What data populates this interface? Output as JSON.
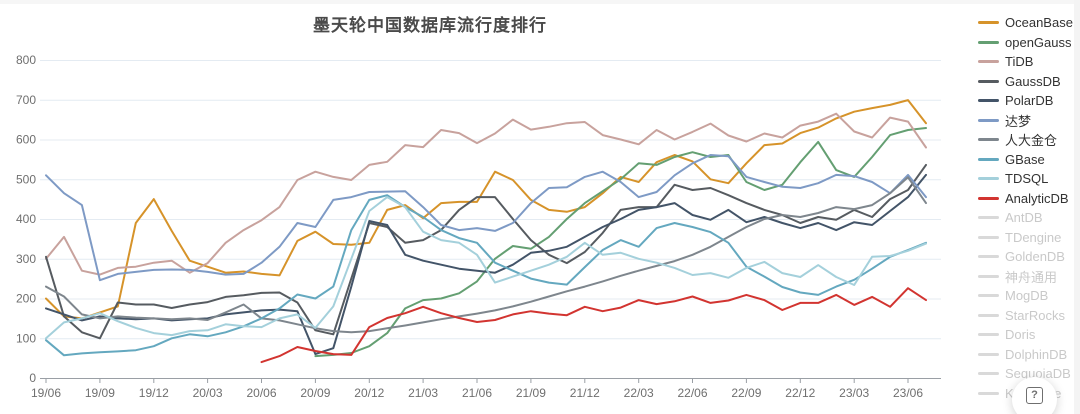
{
  "help_button": {
    "icon": "?"
  },
  "chart_data": {
    "type": "line",
    "title": "墨天轮中国数据库流行度排行",
    "legend_position": "right",
    "grid": true,
    "ylim": [
      0,
      800
    ],
    "y_ticks": [
      0,
      100,
      200,
      300,
      400,
      500,
      600,
      700,
      800
    ],
    "axis_text_color": "#6f6f6f",
    "axis_line_color": "#9a9fa5",
    "grid_color": "#e4ebf2",
    "disabled_color": "#d9d9d9",
    "x": [
      "19/06",
      "19/07",
      "19/08",
      "19/09",
      "19/10",
      "19/11",
      "19/12",
      "20/01",
      "20/02",
      "20/03",
      "20/04",
      "20/05",
      "20/06",
      "20/07",
      "20/08",
      "20/09",
      "20/10",
      "20/11",
      "20/12",
      "21/01",
      "21/02",
      "21/03",
      "21/04",
      "21/05",
      "21/06",
      "21/07",
      "21/08",
      "21/09",
      "21/10",
      "21/11",
      "21/12",
      "22/01",
      "22/02",
      "22/03",
      "22/04",
      "22/05",
      "22/06",
      "22/07",
      "22/08",
      "22/09",
      "22/10",
      "22/11",
      "22/12",
      "23/01",
      "23/02",
      "23/03",
      "23/04",
      "23/05",
      "23/06",
      "23/07"
    ],
    "x_tick_labels": [
      "19/06",
      "19/09",
      "19/12",
      "20/03",
      "20/06",
      "20/09",
      "20/12",
      "21/03",
      "21/06",
      "21/09",
      "21/12",
      "22/03",
      "22/06",
      "22/09",
      "22/12",
      "23/03",
      "23/06"
    ],
    "series": [
      {
        "name": "OceanBase",
        "color": "#d6932a",
        "active": true,
        "values": [
          200,
          155,
          150,
          165,
          180,
          390,
          450,
          370,
          295,
          280,
          265,
          268,
          262,
          258,
          345,
          368,
          337,
          335,
          340,
          423,
          435,
          402,
          440,
          443,
          443,
          519,
          498,
          448,
          423,
          418,
          430,
          465,
          506,
          493,
          543,
          561,
          545,
          500,
          490,
          540,
          586,
          590,
          616,
          630,
          653,
          670,
          679,
          687,
          699,
          641
        ]
      },
      {
        "name": "openGauss",
        "color": "#649f72",
        "active": true,
        "values": [
          null,
          null,
          null,
          null,
          null,
          null,
          null,
          null,
          null,
          null,
          null,
          null,
          null,
          null,
          null,
          55,
          58,
          63,
          80,
          113,
          175,
          196,
          200,
          213,
          243,
          300,
          332,
          325,
          355,
          400,
          440,
          470,
          500,
          540,
          536,
          556,
          568,
          556,
          561,
          493,
          473,
          486,
          543,
          594,
          523,
          506,
          556,
          611,
          624,
          629
        ]
      },
      {
        "name": "TiDB",
        "color": "#c8a29d",
        "active": true,
        "values": [
          300,
          355,
          270,
          260,
          277,
          280,
          290,
          295,
          265,
          289,
          340,
          372,
          397,
          430,
          498,
          519,
          506,
          498,
          536,
          544,
          586,
          581,
          624,
          616,
          591,
          615,
          650,
          625,
          632,
          641,
          644,
          611,
          600,
          588,
          624,
          600,
          619,
          640,
          610,
          595,
          615,
          605,
          635,
          645,
          665,
          620,
          605,
          655,
          645,
          580
        ]
      },
      {
        "name": "GaussDB",
        "color": "#565b60",
        "active": true,
        "values": [
          305,
          155,
          115,
          100,
          190,
          185,
          185,
          176,
          185,
          191,
          204,
          208,
          214,
          215,
          190,
          120,
          110,
          250,
          390,
          380,
          340,
          347,
          372,
          423,
          455,
          455,
          400,
          347,
          310,
          289,
          317,
          365,
          423,
          430,
          430,
          486,
          473,
          478,
          460,
          440,
          423,
          410,
          390,
          405,
          398,
          423,
          405,
          450,
          473,
          536
        ]
      },
      {
        "name": "PolarDB",
        "color": "#435468",
        "active": true,
        "values": [
          175,
          160,
          145,
          155,
          150,
          148,
          150,
          145,
          148,
          150,
          160,
          165,
          170,
          172,
          168,
          60,
          75,
          230,
          395,
          385,
          310,
          295,
          285,
          275,
          270,
          265,
          285,
          315,
          320,
          330,
          355,
          380,
          400,
          423,
          430,
          440,
          410,
          398,
          423,
          392,
          405,
          390,
          377,
          390,
          372,
          392,
          385,
          420,
          455,
          511
        ]
      },
      {
        "name": "达梦",
        "color": "#7e9ac5",
        "active": true,
        "values": [
          510,
          465,
          435,
          246,
          262,
          267,
          272,
          273,
          272,
          267,
          260,
          262,
          290,
          330,
          390,
          380,
          448,
          455,
          468,
          469,
          470,
          430,
          385,
          372,
          377,
          370,
          390,
          440,
          478,
          480,
          506,
          519,
          493,
          455,
          468,
          510,
          540,
          561,
          558,
          506,
          493,
          481,
          478,
          490,
          511,
          508,
          493,
          465,
          511,
          455
        ]
      },
      {
        "name": "人大金仓",
        "color": "#7e868d",
        "active": true,
        "values": [
          230,
          205,
          160,
          150,
          155,
          152,
          150,
          148,
          150,
          146,
          165,
          185,
          150,
          145,
          135,
          125,
          118,
          115,
          118,
          125,
          132,
          140,
          148,
          155,
          162,
          170,
          180,
          192,
          205,
          218,
          230,
          243,
          257,
          270,
          282,
          294,
          310,
          330,
          355,
          380,
          400,
          410,
          405,
          415,
          430,
          425,
          435,
          465,
          505,
          440
        ]
      },
      {
        "name": "GBase",
        "color": "#64a8bf",
        "active": true,
        "values": [
          95,
          57,
          62,
          65,
          67,
          70,
          80,
          100,
          110,
          105,
          115,
          130,
          150,
          175,
          210,
          200,
          230,
          372,
          448,
          460,
          430,
          405,
          372,
          352,
          340,
          290,
          270,
          250,
          240,
          235,
          279,
          322,
          347,
          330,
          377,
          390,
          380,
          367,
          340,
          280,
          255,
          229,
          215,
          209,
          230,
          247,
          275,
          305,
          322,
          340
        ]
      },
      {
        "name": "TDSQL",
        "color": "#a4d0db",
        "active": true,
        "values": [
          100,
          140,
          150,
          163,
          143,
          126,
          113,
          108,
          118,
          120,
          135,
          130,
          128,
          150,
          160,
          126,
          180,
          300,
          420,
          455,
          430,
          368,
          347,
          340,
          310,
          240,
          255,
          270,
          285,
          305,
          340,
          310,
          315,
          300,
          290,
          277,
          259,
          264,
          252,
          277,
          292,
          264,
          254,
          284,
          254,
          234,
          305,
          307,
          320,
          338
        ]
      },
      {
        "name": "AnalyticDB",
        "color": "#d23430",
        "active": true,
        "values": [
          null,
          null,
          null,
          null,
          null,
          null,
          null,
          null,
          null,
          null,
          null,
          null,
          40,
          55,
          78,
          68,
          60,
          58,
          128,
          151,
          163,
          179,
          163,
          151,
          141,
          146,
          160,
          168,
          162,
          158,
          179,
          168,
          177,
          196,
          186,
          193,
          205,
          189,
          195,
          209,
          196,
          171,
          189,
          189,
          209,
          184,
          204,
          179,
          226,
          196
        ]
      },
      {
        "name": "AntDB",
        "active": false
      },
      {
        "name": "TDengine",
        "active": false
      },
      {
        "name": "GoldenDB",
        "active": false
      },
      {
        "name": "神舟通用",
        "active": false
      },
      {
        "name": "MogDB",
        "active": false
      },
      {
        "name": "StarRocks",
        "active": false
      },
      {
        "name": "Doris",
        "active": false
      },
      {
        "name": "DolphinDB",
        "active": false
      },
      {
        "name": "SequoiaDB",
        "active": false
      },
      {
        "name": "Kyligence",
        "active": false
      }
    ]
  }
}
